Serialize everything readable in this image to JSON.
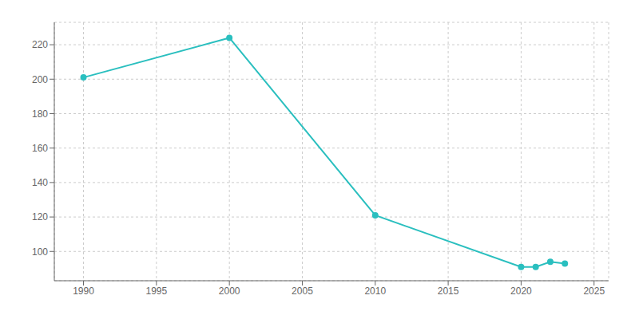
{
  "chart_data": {
    "type": "line",
    "x": [
      1990,
      2000,
      2010,
      2020,
      2021,
      2022,
      2023
    ],
    "values": [
      201,
      224,
      121,
      91,
      91,
      94,
      93
    ],
    "color": "#2ABFBF",
    "marker": "circle",
    "xlim": [
      1988,
      2026
    ],
    "ylim": [
      83,
      233
    ],
    "xticks": [
      1990,
      1995,
      2000,
      2005,
      2010,
      2015,
      2020,
      2025
    ],
    "yticks": [
      100,
      120,
      140,
      160,
      180,
      200,
      220
    ],
    "grid": true
  }
}
